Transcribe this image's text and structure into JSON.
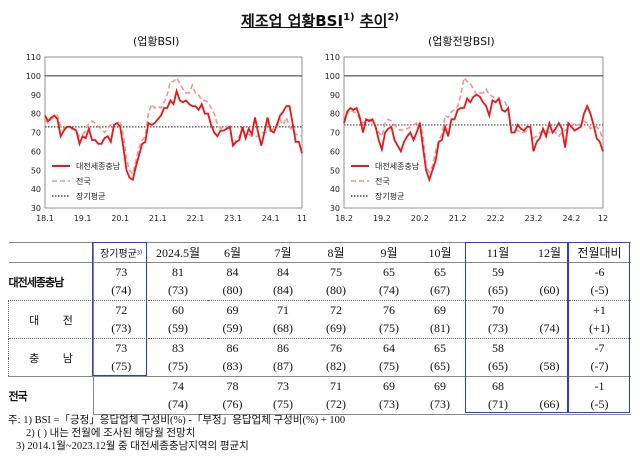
{
  "title": {
    "main": "제조업 업황BSI",
    "sup1": "1)",
    "main2": "추이",
    "sup2": "2)"
  },
  "chart_data": [
    {
      "type": "line",
      "title": "(업황BSI)",
      "ylim": [
        30,
        110
      ],
      "yticks": [
        30,
        40,
        50,
        60,
        70,
        80,
        90,
        100,
        110
      ],
      "xticks": [
        "18.1",
        "19.1",
        "20.1",
        "21.1",
        "22.1",
        "23.1",
        "24.1",
        "11"
      ],
      "x_start": "2018-01",
      "x_end": "2024-11",
      "reference_line": 100,
      "long_term_average": 73,
      "series": [
        {
          "name": "대전세종충남",
          "color": "#e8171c",
          "style": "solid",
          "values": [
            79,
            76,
            78,
            79,
            77,
            68,
            71,
            73,
            73,
            72,
            71,
            64,
            68,
            67,
            72,
            66,
            66,
            64,
            64,
            67,
            68,
            65,
            74,
            75,
            73,
            62,
            50,
            46,
            45,
            52,
            58,
            64,
            65,
            75,
            74,
            75,
            77,
            79,
            83,
            83,
            87,
            85,
            92,
            87,
            86,
            87,
            85,
            84,
            84,
            82,
            85,
            80,
            80,
            74,
            70,
            68,
            71,
            71,
            72,
            73,
            63,
            65,
            66,
            73,
            67,
            72,
            69,
            78,
            70,
            63,
            70,
            78,
            71,
            70,
            74,
            79,
            81,
            84,
            84,
            75,
            65,
            65,
            59
          ]
        },
        {
          "name": "전국",
          "color": "#f4948f",
          "style": "dashed",
          "values": [
            77,
            75,
            77,
            78,
            79,
            73,
            72,
            73,
            72,
            72,
            70,
            68,
            69,
            71,
            75,
            76,
            75,
            73,
            72,
            70,
            72,
            74,
            74,
            75,
            76,
            68,
            56,
            50,
            48,
            55,
            62,
            66,
            68,
            80,
            85,
            83,
            84,
            83,
            86,
            90,
            97,
            97,
            99,
            96,
            93,
            91,
            91,
            95,
            91,
            90,
            87,
            87,
            86,
            83,
            80,
            74,
            72,
            73,
            73,
            72,
            63,
            66,
            68,
            71,
            69,
            69,
            68,
            68,
            68,
            70,
            70,
            70,
            71,
            72,
            73,
            77,
            74,
            78,
            73,
            71,
            69,
            69,
            68
          ]
        },
        {
          "name": "장기평균",
          "color": "#444444",
          "style": "dotted"
        }
      ]
    },
    {
      "type": "line",
      "title": "(업황전망BSI)",
      "ylim": [
        30,
        110
      ],
      "yticks": [
        30,
        40,
        50,
        60,
        70,
        80,
        90,
        100,
        110
      ],
      "xticks": [
        "18.2",
        "19.2",
        "20.2",
        "21.2",
        "22.2",
        "23.2",
        "24.2",
        "12"
      ],
      "x_start": "2018-02",
      "x_end": "2024-12",
      "reference_line": 100,
      "long_term_average": 74,
      "series": [
        {
          "name": "대전세종충남",
          "color": "#e8171c",
          "style": "solid",
          "values": [
            75,
            81,
            83,
            82,
            83,
            78,
            70,
            77,
            76,
            77,
            73,
            66,
            61,
            70,
            72,
            73,
            66,
            63,
            60,
            65,
            68,
            70,
            66,
            70,
            75,
            62,
            50,
            45,
            50,
            55,
            65,
            66,
            73,
            68,
            77,
            77,
            82,
            83,
            83,
            88,
            86,
            89,
            90,
            89,
            86,
            84,
            79,
            87,
            86,
            88,
            82,
            81,
            83,
            70,
            70,
            74,
            72,
            71,
            73,
            73,
            60,
            65,
            67,
            72,
            68,
            75,
            70,
            72,
            75,
            72,
            62,
            75,
            73,
            71,
            72,
            73,
            80,
            84,
            80,
            74,
            67,
            65,
            60
          ]
        },
        {
          "name": "전국",
          "color": "#f4948f",
          "style": "dashed",
          "values": [
            75,
            80,
            82,
            81,
            80,
            77,
            75,
            76,
            77,
            76,
            73,
            70,
            68,
            75,
            77,
            76,
            74,
            72,
            71,
            72,
            72,
            73,
            74,
            75,
            76,
            68,
            52,
            49,
            52,
            60,
            66,
            69,
            79,
            78,
            81,
            82,
            84,
            90,
            99,
            97,
            96,
            93,
            90,
            91,
            91,
            93,
            90,
            89,
            88,
            87,
            87,
            86,
            82,
            72,
            71,
            71,
            70,
            70,
            71,
            71,
            67,
            68,
            70,
            70,
            71,
            70,
            71,
            70,
            68,
            70,
            71,
            72,
            73,
            75,
            74,
            74,
            76,
            75,
            72,
            73,
            73,
            71,
            66
          ]
        },
        {
          "name": "장기평균",
          "color": "#444444",
          "style": "dotted"
        }
      ]
    }
  ],
  "table": {
    "headers": [
      "",
      "장기평균³⁾",
      "2024.5월",
      "6월",
      "7월",
      "8월",
      "9월",
      "10월",
      "11월",
      "12월",
      "전월대비"
    ],
    "rows": [
      {
        "label": "대전세종충남",
        "actual": [
          "73",
          "81",
          "84",
          "84",
          "75",
          "65",
          "65",
          "59",
          "",
          "-6"
        ],
        "outlook": [
          "(74)",
          "(73)",
          "(80)",
          "(84)",
          "(80)",
          "(74)",
          "(67)",
          "(65)",
          "(60)",
          "(-5)"
        ]
      },
      {
        "label": "대 전",
        "actual": [
          "72",
          "60",
          "69",
          "71",
          "72",
          "76",
          "69",
          "70",
          "",
          "+1"
        ],
        "outlook": [
          "(73)",
          "(59)",
          "(59)",
          "(68)",
          "(69)",
          "(75)",
          "(81)",
          "(73)",
          "(74)",
          "(+1)"
        ]
      },
      {
        "label": "충 남",
        "actual": [
          "73",
          "83",
          "86",
          "86",
          "76",
          "64",
          "65",
          "58",
          "",
          "-7"
        ],
        "outlook": [
          "(75)",
          "(75)",
          "(83)",
          "(87)",
          "(82)",
          "(75)",
          "(65)",
          "(65)",
          "(58)",
          "(-7)"
        ]
      },
      {
        "label": "전국",
        "actual": [
          "",
          "74",
          "78",
          "73",
          "71",
          "69",
          "69",
          "68",
          "",
          "-1"
        ],
        "outlook": [
          "",
          "(74)",
          "(76)",
          "(75)",
          "(72)",
          "(73)",
          "(73)",
          "(71)",
          "(66)",
          "(-5)"
        ]
      }
    ],
    "highlight_color": "#2b3fd4"
  },
  "notes": [
    "주: 1) BSI =「긍정」응답업체 구성비(%) -「부정」응답업체 구성비(%) + 100",
    "2) (    ) 내는 전월에 조사된 해당월 전망치",
    "3) 2014.1월~2023.12월 중 대전세종충남지역의 평균치"
  ]
}
